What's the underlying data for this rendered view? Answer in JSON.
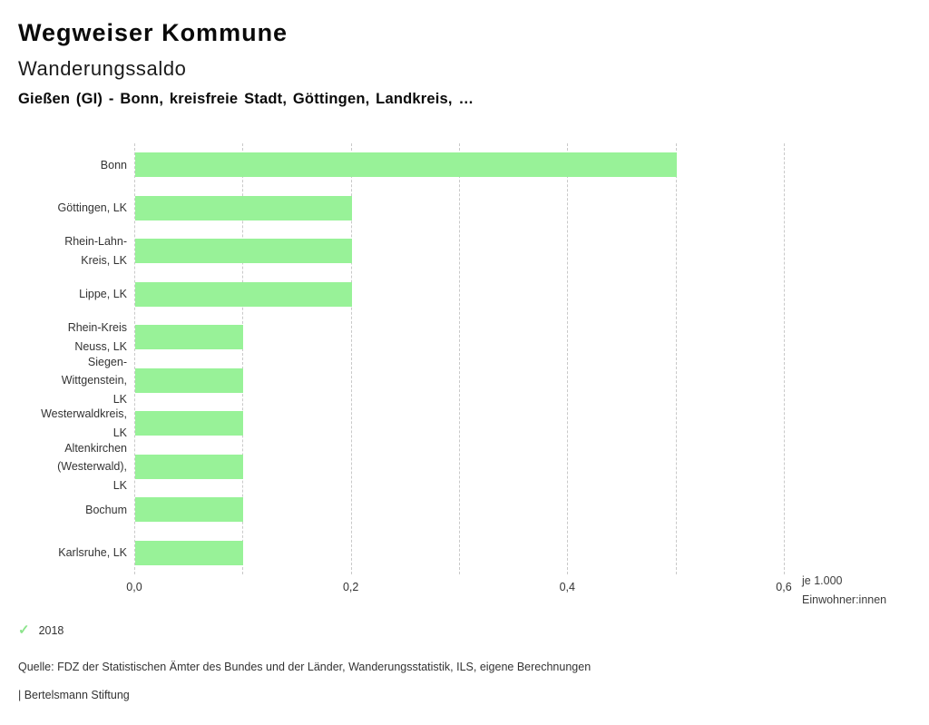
{
  "header": {
    "title": "Wegweiser Kommune",
    "chart_title": "Wanderungssaldo",
    "selection": "Gießen (GI) - Bonn, kreisfreie Stadt, Göttingen, Landkreis, …"
  },
  "chart_data": {
    "type": "bar",
    "orientation": "horizontal",
    "title": "Wanderungssaldo",
    "categories": [
      "Bonn",
      "Göttingen, LK",
      "Rhein-Lahn-Kreis, LK",
      "Lippe, LK",
      "Rhein-Kreis Neuss, LK",
      "Siegen-Wittgenstein, LK",
      "Westerwaldkreis, LK",
      "Altenkirchen (Westerwald), LK",
      "Bochum",
      "Karlsruhe, LK"
    ],
    "category_label_lines": [
      [
        "Bonn"
      ],
      [
        "Göttingen, LK"
      ],
      [
        "Rhein-Lahn-",
        "Kreis, LK"
      ],
      [
        "Lippe, LK"
      ],
      [
        "Rhein-Kreis",
        "Neuss, LK"
      ],
      [
        "Siegen-",
        "Wittgenstein,",
        "LK"
      ],
      [
        "Westerwaldkreis,",
        "LK"
      ],
      [
        "Altenkirchen",
        "(Westerwald),",
        "LK"
      ],
      [
        "Bochum"
      ],
      [
        "Karlsruhe, LK"
      ]
    ],
    "series": [
      {
        "name": "2018",
        "color": "#98f298",
        "values": [
          0.5,
          0.2,
          0.2,
          0.2,
          0.1,
          0.1,
          0.1,
          0.1,
          0.1,
          0.1
        ]
      }
    ],
    "xlabel": "je 1.000 Einwohner:innen",
    "unit_label_lines": [
      "je 1.000",
      "Einwohner:innen"
    ],
    "xlim": [
      0,
      0.6
    ],
    "x_ticks": [
      {
        "value": 0.0,
        "label": "0,0"
      },
      {
        "value": 0.2,
        "label": "0,2"
      },
      {
        "value": 0.4,
        "label": "0,4"
      },
      {
        "value": 0.6,
        "label": "0,6"
      }
    ],
    "minor_grid_step": 0.1,
    "grid": "vertical-dashed",
    "legend_position": "bottom-left"
  },
  "legend": {
    "items": [
      {
        "label": "2018",
        "icon": "check-icon",
        "glyph": "✓",
        "color": "#8ce48c"
      }
    ]
  },
  "footer": {
    "source": "Quelle: FDZ der Statistischen Ämter des Bundes und der Länder, Wanderungsstatistik, ILS, eigene Berechnungen",
    "branding": "| Bertelsmann Stiftung"
  },
  "colors": {
    "bar_green": "#98f298",
    "gridline": "#c9c9c9",
    "text": "#333333"
  }
}
